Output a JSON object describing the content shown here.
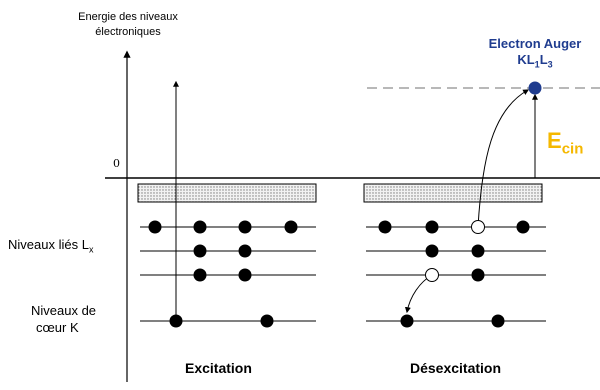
{
  "axis": {
    "title_line1": "Energie des niveaux",
    "title_line2": "électroniques",
    "zero_label": "0"
  },
  "labels": {
    "bound_levels_main": "Niveaux liés L",
    "bound_levels_sub": "x",
    "core_line1": "Niveaux de",
    "core_line2": "cœur K"
  },
  "panels": {
    "left_caption": "Excitation",
    "right_caption": "Désexcitation"
  },
  "auger": {
    "line1": "Electron Auger",
    "line2_main": "KL",
    "line2_sub1": "1",
    "line2_mid": "L",
    "line2_sub2": "3",
    "kinetic_main": "E",
    "kinetic_sub": "cin"
  },
  "colors": {
    "electron": "#000000",
    "auger_electron": "#1f3c8f",
    "auger_text": "#1f3c8f",
    "kinetic_text": "#f5b800",
    "band_fill": "#dcdcdc",
    "dashed_level": "#b8b8b8"
  }
}
